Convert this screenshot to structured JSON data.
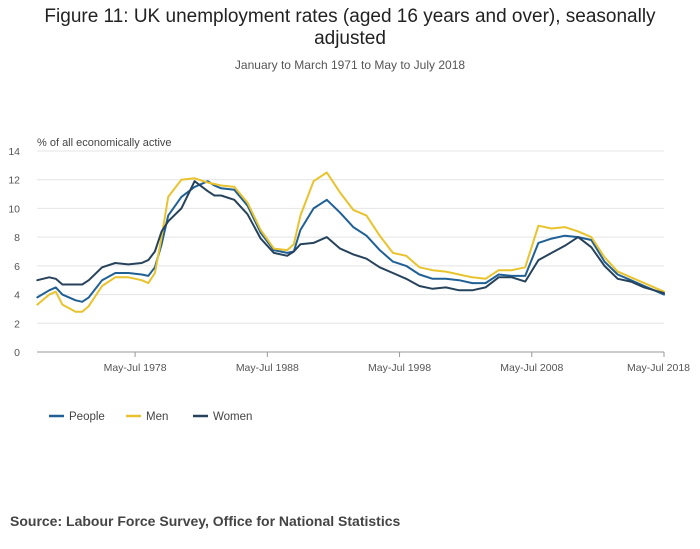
{
  "chart_data": {
    "type": "line",
    "title": "Figure 11: UK unemployment rates (aged 16 years and over), seasonally adjusted",
    "subtitle": "January to March 1971 to May to July 2018",
    "ylabel": "% of all economically active",
    "ylim": [
      0,
      14
    ],
    "yticks": [
      0,
      2,
      4,
      6,
      8,
      10,
      12,
      14
    ],
    "xlim": [
      1971.08,
      2018.5
    ],
    "xticks": [
      {
        "value": 1978.5,
        "label": "May-Jul 1978"
      },
      {
        "value": 1988.5,
        "label": "May-Jul 1988"
      },
      {
        "value": 1998.5,
        "label": "May-Jul 1998"
      },
      {
        "value": 2008.5,
        "label": "May-Jul 2008"
      },
      {
        "value": 2018.5,
        "label": "May-Jul 2018"
      }
    ],
    "grid": true,
    "legend_position": "bottom-left",
    "x": [
      1971.1,
      1972.0,
      1972.5,
      1973.0,
      1974.0,
      1974.5,
      1975.0,
      1976.0,
      1977.0,
      1978.0,
      1979.0,
      1979.5,
      1980.0,
      1980.5,
      1981.0,
      1982.0,
      1983.0,
      1984.0,
      1984.5,
      1985.0,
      1986.0,
      1987.0,
      1988.0,
      1989.0,
      1990.0,
      1990.5,
      1991.0,
      1992.0,
      1993.0,
      1994.0,
      1995.0,
      1996.0,
      1997.0,
      1998.0,
      1999.0,
      2000.0,
      2001.0,
      2002.0,
      2003.0,
      2004.0,
      2005.0,
      2006.0,
      2007.0,
      2008.0,
      2009.0,
      2010.0,
      2011.0,
      2012.0,
      2013.0,
      2014.0,
      2015.0,
      2016.0,
      2017.0,
      2018.5
    ],
    "series": [
      {
        "name": "People",
        "color": "#206095",
        "values": [
          3.8,
          4.3,
          4.5,
          4.0,
          3.6,
          3.5,
          3.8,
          5.0,
          5.5,
          5.5,
          5.4,
          5.3,
          5.9,
          7.5,
          9.5,
          10.8,
          11.5,
          11.9,
          11.6,
          11.4,
          11.3,
          10.2,
          8.3,
          7.1,
          6.9,
          7.0,
          8.5,
          10.0,
          10.6,
          9.7,
          8.7,
          8.1,
          7.1,
          6.3,
          6.0,
          5.4,
          5.1,
          5.1,
          5.0,
          4.8,
          4.8,
          5.4,
          5.3,
          5.3,
          7.6,
          7.9,
          8.1,
          8.0,
          7.8,
          6.3,
          5.4,
          5.0,
          4.6,
          4.0
        ]
      },
      {
        "name": "Men",
        "color": "#E8C32D",
        "values": [
          3.3,
          4.0,
          4.2,
          3.3,
          2.8,
          2.8,
          3.2,
          4.6,
          5.2,
          5.2,
          5.0,
          4.8,
          5.5,
          8.0,
          10.8,
          12.0,
          12.1,
          11.8,
          11.7,
          11.6,
          11.5,
          10.4,
          8.5,
          7.2,
          7.1,
          7.5,
          9.5,
          11.9,
          12.5,
          11.1,
          9.9,
          9.5,
          8.1,
          6.9,
          6.7,
          5.9,
          5.7,
          5.6,
          5.4,
          5.2,
          5.1,
          5.7,
          5.7,
          5.9,
          8.8,
          8.6,
          8.7,
          8.4,
          8.0,
          6.6,
          5.6,
          5.2,
          4.8,
          4.2
        ]
      },
      {
        "name": "Women",
        "color": "#27435C",
        "values": [
          5.0,
          5.2,
          5.1,
          4.7,
          4.7,
          4.7,
          5.0,
          5.9,
          6.2,
          6.1,
          6.2,
          6.4,
          7.0,
          8.4,
          9.1,
          10.0,
          11.9,
          11.2,
          10.9,
          10.9,
          10.6,
          9.6,
          7.9,
          6.9,
          6.7,
          7.0,
          7.5,
          7.6,
          8.0,
          7.2,
          6.8,
          6.5,
          5.9,
          5.5,
          5.1,
          4.6,
          4.4,
          4.5,
          4.3,
          4.3,
          4.5,
          5.2,
          5.2,
          4.9,
          6.4,
          6.9,
          7.4,
          8.0,
          7.3,
          6.0,
          5.1,
          4.9,
          4.5,
          4.1
        ]
      }
    ]
  },
  "source": "Source: Labour Force Survey, Office for National Statistics"
}
